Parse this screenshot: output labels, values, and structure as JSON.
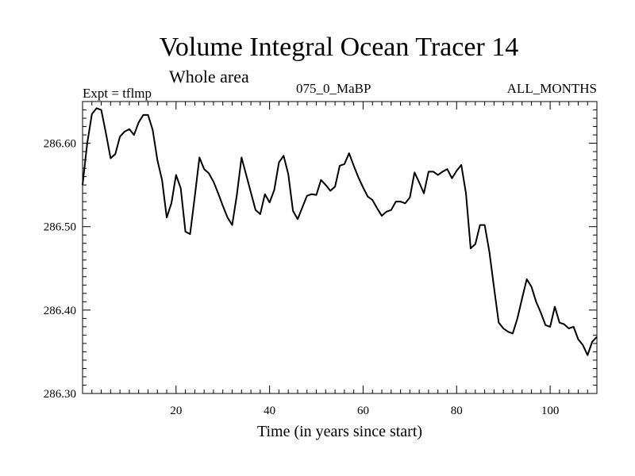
{
  "chart_data": {
    "type": "line",
    "title": "Volume Integral Ocean Tracer 14",
    "subtitle": "Whole area",
    "expt_label": "Expt = tflmp",
    "run_label": "075_0_MaBP",
    "period_label": "ALL_MONTHS",
    "xlabel": "Time (in years since start)",
    "ylabel": "",
    "xlim": [
      0,
      110
    ],
    "ylim": [
      286.3,
      286.65
    ],
    "xticks": [
      20,
      40,
      60,
      80,
      100
    ],
    "xtick_labels": [
      "20",
      "40",
      "60",
      "80",
      "100"
    ],
    "yticks": [
      286.3,
      286.4,
      286.5,
      286.6
    ],
    "ytick_labels": [
      "286.30",
      "286.40",
      "286.50",
      "286.60"
    ],
    "grid": false,
    "color": "#000000",
    "series": [
      {
        "x": [
          0,
          1,
          2,
          3,
          4,
          5,
          6,
          7,
          8,
          9,
          10,
          11,
          12,
          13,
          14,
          15,
          16,
          17,
          18,
          19,
          20,
          21,
          22,
          23,
          24,
          25,
          26,
          27,
          28,
          29,
          30,
          31,
          32,
          33,
          34,
          35,
          36,
          37,
          38,
          39,
          40,
          41,
          42,
          43,
          44,
          45,
          46,
          47,
          48,
          49,
          50,
          51,
          52,
          53,
          54,
          55,
          56,
          57,
          58,
          59,
          60,
          61,
          62,
          63,
          64,
          65,
          66,
          67,
          68,
          69,
          70,
          71,
          72,
          73,
          74,
          75,
          76,
          77,
          78,
          79,
          80,
          81,
          82,
          83,
          84,
          85,
          86,
          87,
          88,
          89,
          90,
          91,
          92,
          93,
          94,
          95,
          96,
          97,
          98,
          99,
          100,
          101,
          102,
          103,
          104,
          105,
          106,
          107,
          108,
          109,
          110
        ],
        "values": [
          286.55,
          286.6,
          286.635,
          286.642,
          286.64,
          286.612,
          286.582,
          286.587,
          286.608,
          286.614,
          286.617,
          286.61,
          286.625,
          286.634,
          286.634,
          286.616,
          286.58,
          286.556,
          286.511,
          286.528,
          286.562,
          286.546,
          286.494,
          286.491,
          286.536,
          286.583,
          286.569,
          286.564,
          286.554,
          286.54,
          286.525,
          286.511,
          286.502,
          286.538,
          286.583,
          286.562,
          286.541,
          286.52,
          286.515,
          286.539,
          286.529,
          286.544,
          286.577,
          286.585,
          286.563,
          286.519,
          286.509,
          286.523,
          286.537,
          286.539,
          286.538,
          286.556,
          286.55,
          286.543,
          286.548,
          286.573,
          286.575,
          286.588,
          286.573,
          286.559,
          286.547,
          286.536,
          286.532,
          286.522,
          286.513,
          286.518,
          286.52,
          286.53,
          286.53,
          286.528,
          286.535,
          286.565,
          286.553,
          286.54,
          286.566,
          286.566,
          286.562,
          286.566,
          286.569,
          286.558,
          286.567,
          286.574,
          286.54,
          286.474,
          286.479,
          286.502,
          286.502,
          286.47,
          286.427,
          286.385,
          286.378,
          286.374,
          286.372,
          286.39,
          286.414,
          286.437,
          286.428,
          286.41,
          286.397,
          286.382,
          286.38,
          286.404,
          286.385,
          286.383,
          286.378,
          286.38,
          286.365,
          286.358,
          286.346,
          286.362,
          286.368
        ]
      }
    ]
  }
}
